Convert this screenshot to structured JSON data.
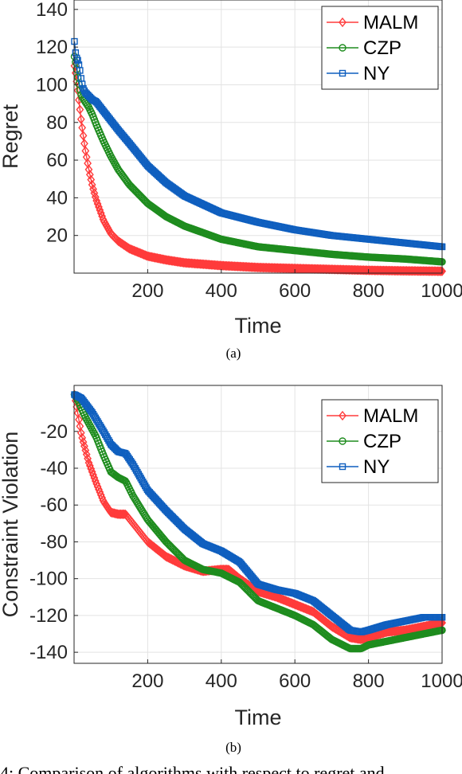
{
  "chart_data": [
    {
      "type": "line",
      "caption": "(a)",
      "xlabel": "Time",
      "ylabel": "Regret",
      "xlim": [
        0,
        1000
      ],
      "ylim": [
        0,
        145
      ],
      "xticks": [
        200,
        400,
        600,
        800,
        1000
      ],
      "yticks": [
        20,
        40,
        60,
        80,
        100,
        120,
        140
      ],
      "grid": true,
      "legend_position": "top-right",
      "series": [
        {
          "name": "MALM",
          "color": "#FF3B3B",
          "marker": "diamond",
          "x": [
            1,
            5,
            10,
            20,
            30,
            40,
            50,
            60,
            80,
            100,
            120,
            150,
            200,
            250,
            300,
            400,
            500,
            600,
            700,
            800,
            900,
            1000
          ],
          "y": [
            110,
            105,
            97,
            80,
            66,
            55,
            46,
            39,
            28,
            21,
            17,
            13,
            9,
            7,
            5.5,
            4,
            3,
            2.5,
            2,
            1.5,
            1.2,
            1
          ]
        },
        {
          "name": "CZP",
          "color": "#1E8C1E",
          "marker": "circle",
          "x": [
            1,
            5,
            10,
            15,
            20,
            30,
            40,
            50,
            60,
            80,
            100,
            120,
            150,
            200,
            250,
            300,
            400,
            500,
            600,
            700,
            800,
            900,
            1000
          ],
          "y": [
            115,
            111,
            104,
            98,
            94,
            91,
            88,
            84,
            79,
            70,
            62,
            55,
            47,
            37,
            30,
            25,
            18,
            14,
            12,
            10,
            8.5,
            7.5,
            6
          ]
        },
        {
          "name": "NY",
          "color": "#0F5FBF",
          "marker": "square",
          "x": [
            1,
            5,
            10,
            15,
            20,
            25,
            30,
            40,
            50,
            60,
            80,
            100,
            120,
            150,
            200,
            250,
            300,
            400,
            500,
            600,
            700,
            800,
            900,
            1000
          ],
          "y": [
            123,
            115,
            113,
            109,
            102,
            98,
            96,
            94,
            92,
            91,
            86,
            81,
            76,
            69,
            57,
            48,
            41,
            32,
            27,
            23,
            20,
            18,
            16,
            14
          ]
        }
      ]
    },
    {
      "type": "line",
      "caption": "(b)",
      "xlabel": "Time",
      "ylabel": "Constraint Violation",
      "xlim": [
        0,
        1000
      ],
      "ylim": [
        -146,
        5
      ],
      "xticks": [
        200,
        400,
        600,
        800,
        1000
      ],
      "yticks": [
        -20,
        -40,
        -60,
        -80,
        -100,
        -120,
        -140
      ],
      "grid": true,
      "legend_position": "top-right",
      "series": [
        {
          "name": "MALM",
          "color": "#FF3B3B",
          "marker": "diamond",
          "x": [
            1,
            10,
            20,
            40,
            60,
            80,
            100,
            120,
            140,
            160,
            200,
            250,
            300,
            350,
            400,
            420,
            450,
            500,
            550,
            600,
            650,
            700,
            750,
            780,
            800,
            850,
            900,
            950,
            1000
          ],
          "y": [
            0,
            -10,
            -22,
            -37,
            -48,
            -58,
            -64,
            -65,
            -65,
            -70,
            -80,
            -88,
            -93,
            -96,
            -95,
            -95,
            -100,
            -107,
            -110,
            -114,
            -118,
            -126,
            -132,
            -133,
            -132,
            -129,
            -128,
            -126,
            -124
          ]
        },
        {
          "name": "CZP",
          "color": "#1E8C1E",
          "marker": "circle",
          "x": [
            1,
            10,
            30,
            60,
            80,
            100,
            120,
            140,
            160,
            200,
            250,
            300,
            350,
            400,
            450,
            500,
            550,
            600,
            650,
            700,
            750,
            780,
            800,
            850,
            900,
            950,
            1000
          ],
          "y": [
            0,
            -3,
            -12,
            -23,
            -33,
            -42,
            -45,
            -47,
            -55,
            -68,
            -80,
            -90,
            -95,
            -97,
            -102,
            -112,
            -116,
            -120,
            -125,
            -133,
            -138,
            -138,
            -136,
            -134,
            -132,
            -130,
            -128
          ]
        },
        {
          "name": "NY",
          "color": "#0F5FBF",
          "marker": "square",
          "x": [
            1,
            20,
            50,
            80,
            100,
            120,
            140,
            160,
            200,
            250,
            300,
            350,
            400,
            450,
            500,
            550,
            600,
            650,
            700,
            750,
            780,
            800,
            850,
            900,
            950,
            1000
          ],
          "y": [
            0,
            -2,
            -10,
            -20,
            -27,
            -31,
            -32,
            -38,
            -52,
            -63,
            -73,
            -81,
            -85,
            -91,
            -103,
            -106,
            -108,
            -112,
            -120,
            -128,
            -129,
            -128,
            -125,
            -123,
            -121,
            -121
          ]
        }
      ]
    }
  ],
  "footer_text": "4: Comparison of algorithms with respect to regret and"
}
